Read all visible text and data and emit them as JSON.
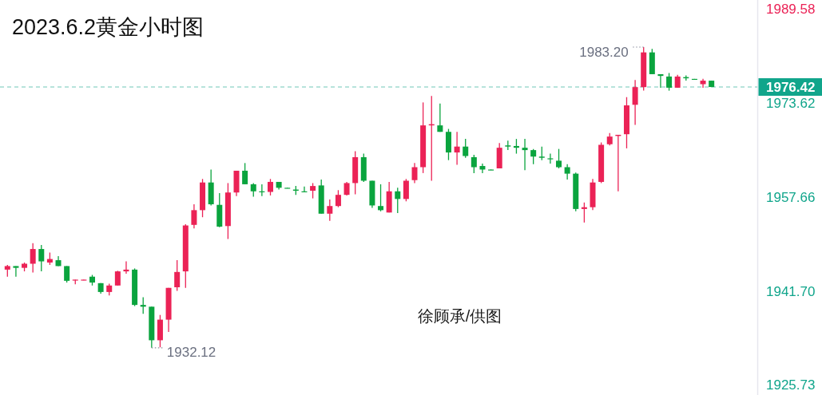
{
  "chart_data": {
    "type": "candlestick",
    "title": "2023.6.2黄金小时图",
    "categories": [
      null,
      null,
      null,
      null,
      null,
      null,
      null,
      null,
      null,
      null,
      null,
      null,
      null,
      null,
      null,
      null,
      null,
      null,
      null,
      null,
      null,
      null,
      null,
      null,
      null,
      null,
      null,
      null,
      null,
      null,
      null,
      null,
      null,
      null,
      null,
      null,
      null,
      null,
      null,
      null,
      null,
      null,
      null,
      null,
      null,
      null,
      null,
      null,
      null,
      null,
      null,
      null,
      null,
      null,
      null,
      null,
      null,
      null,
      null,
      null,
      null,
      null,
      null,
      null,
      null,
      null,
      null,
      null,
      null,
      null,
      null,
      null,
      null,
      null,
      null,
      null,
      null,
      null,
      null,
      null,
      null,
      null,
      null,
      null
    ],
    "ohlc": [
      [
        1945.4,
        1946.2,
        1944.2,
        1946.0
      ],
      [
        1946.0,
        1946.0,
        1944.2,
        1945.7
      ],
      [
        1945.7,
        1946.6,
        1945.1,
        1946.4
      ],
      [
        1946.4,
        1949.9,
        1944.9,
        1948.9
      ],
      [
        1948.9,
        1949.6,
        1945.1,
        1946.8
      ],
      [
        1946.6,
        1948.3,
        1946.2,
        1947.2
      ],
      [
        1947.0,
        1947.7,
        1946.0,
        1946.0
      ],
      [
        1946.0,
        1946.0,
        1943.2,
        1943.5
      ],
      [
        1943.6,
        1943.7,
        1942.9,
        1943.7
      ],
      [
        1943.6,
        1943.7,
        1943.6,
        1943.7
      ],
      [
        1944.2,
        1944.5,
        1942.7,
        1943.2
      ],
      [
        1943.1,
        1943.1,
        1941.3,
        1941.6
      ],
      [
        1941.6,
        1943.0,
        1941.0,
        1942.7
      ],
      [
        1942.7,
        1945.2,
        1942.7,
        1945.1
      ],
      [
        1945.1,
        1946.8,
        1944.7,
        1945.4
      ],
      [
        1945.4,
        1945.6,
        1939.2,
        1939.4
      ],
      [
        1939.4,
        1940.7,
        1937.9,
        1939.1
      ],
      [
        1939.1,
        1939.1,
        1932.12,
        1933.4
      ],
      [
        1933.4,
        1937.7,
        1932.2,
        1936.9
      ],
      [
        1936.9,
        1942.3,
        1934.8,
        1942.3
      ],
      [
        1942.4,
        1947.0,
        1941.8,
        1945.0
      ],
      [
        1945.1,
        1953.1,
        1942.3,
        1952.9
      ],
      [
        1953.0,
        1956.5,
        1952.4,
        1955.5
      ],
      [
        1955.5,
        1960.8,
        1954.3,
        1960.2
      ],
      [
        1960.2,
        1962.4,
        1956.3,
        1956.5
      ],
      [
        1956.4,
        1958.4,
        1952.6,
        1952.7
      ],
      [
        1952.8,
        1960.1,
        1950.6,
        1958.5
      ],
      [
        1958.5,
        1962.2,
        1957.9,
        1962.2
      ],
      [
        1962.2,
        1963.5,
        1959.9,
        1959.9
      ],
      [
        1959.9,
        1960.1,
        1957.8,
        1958.7
      ],
      [
        1958.7,
        1959.9,
        1957.9,
        1958.6
      ],
      [
        1958.6,
        1960.8,
        1958.0,
        1960.3
      ],
      [
        1960.3,
        1960.3,
        1959.0,
        1959.3
      ],
      [
        1959.3,
        1959.3,
        1959.2,
        1959.2
      ],
      [
        1959.0,
        1959.6,
        1958.1,
        1958.8
      ],
      [
        1958.7,
        1959.5,
        1958.6,
        1958.6
      ],
      [
        1958.8,
        1960.1,
        1957.5,
        1959.6
      ],
      [
        1959.7,
        1960.7,
        1954.9,
        1954.9
      ],
      [
        1954.9,
        1957.3,
        1953.7,
        1956.2
      ],
      [
        1956.2,
        1958.9,
        1956.0,
        1958.1
      ],
      [
        1958.1,
        1960.3,
        1958.0,
        1960.1
      ],
      [
        1960.1,
        1965.5,
        1958.2,
        1964.5
      ],
      [
        1964.5,
        1965.1,
        1960.3,
        1960.5
      ],
      [
        1960.5,
        1960.5,
        1955.9,
        1956.3
      ],
      [
        1956.2,
        1959.9,
        1955.3,
        1955.5
      ],
      [
        1955.1,
        1960.3,
        1955.1,
        1958.7
      ],
      [
        1958.7,
        1959.3,
        1955.0,
        1957.4
      ],
      [
        1957.4,
        1960.8,
        1957.0,
        1960.5
      ],
      [
        1960.6,
        1963.5,
        1960.1,
        1962.8
      ],
      [
        1962.8,
        1973.8,
        1961.8,
        1969.9
      ],
      [
        1969.9,
        1974.9,
        1960.5,
        1970.1
      ],
      [
        1969.9,
        1973.6,
        1968.8,
        1968.8
      ],
      [
        1968.8,
        1969.3,
        1964.0,
        1965.3
      ],
      [
        1965.3,
        1968.8,
        1963.2,
        1966.3
      ],
      [
        1966.3,
        1967.6,
        1964.4,
        1964.7
      ],
      [
        1964.5,
        1964.9,
        1961.8,
        1962.8
      ],
      [
        1963.0,
        1963.4,
        1961.8,
        1962.4
      ],
      [
        1962.4,
        1962.4,
        1962.3,
        1962.3
      ],
      [
        1962.6,
        1966.9,
        1962.6,
        1966.1
      ],
      [
        1966.5,
        1967.3,
        1965.7,
        1966.3
      ],
      [
        1966.4,
        1967.6,
        1965.1,
        1966.1
      ],
      [
        1966.1,
        1967.6,
        1962.3,
        1965.7
      ],
      [
        1965.7,
        1965.9,
        1963.3,
        1964.6
      ],
      [
        1964.6,
        1966.3,
        1964.0,
        1964.4
      ],
      [
        1964.3,
        1965.1,
        1963.4,
        1964.2
      ],
      [
        1963.9,
        1965.9,
        1962.6,
        1962.8
      ],
      [
        1962.8,
        1963.3,
        1960.7,
        1961.7
      ],
      [
        1961.7,
        1961.9,
        1955.3,
        1955.7
      ],
      [
        1955.7,
        1956.8,
        1953.4,
        1956.0
      ],
      [
        1956.0,
        1960.8,
        1955.5,
        1960.2
      ],
      [
        1960.3,
        1967.0,
        1960.1,
        1966.6
      ],
      [
        1966.7,
        1968.6,
        1966.5,
        1968.0
      ],
      [
        1968.1,
        1968.3,
        1958.7,
        1968.3
      ],
      [
        1968.4,
        1974.7,
        1966.0,
        1973.3
      ],
      [
        1973.4,
        1977.6,
        1970.0,
        1976.4
      ],
      [
        1976.4,
        1983.2,
        1975.8,
        1982.3
      ],
      [
        1982.3,
        1982.9,
        1978.6,
        1978.6
      ],
      [
        1978.6,
        1978.6,
        1976.3,
        1978.3
      ],
      [
        1978.2,
        1978.8,
        1975.8,
        1976.3
      ],
      [
        1976.3,
        1978.5,
        1976.3,
        1978.2
      ],
      [
        1978.1,
        1978.4,
        1977.5,
        1977.9
      ],
      [
        1977.8,
        1977.8,
        1977.7,
        1977.7
      ],
      [
        1976.9,
        1977.8,
        1976.3,
        1977.5
      ],
      [
        1977.5,
        1977.5,
        1976.4,
        1976.42
      ]
    ],
    "colors": [
      "#eb2256",
      "#0aa43e",
      "#eb2256",
      "#eb2256",
      "#0aa43e",
      "#eb2256",
      "#0aa43e",
      "#0aa43e",
      "#eb2256",
      "#eb2256",
      "#0aa43e",
      "#0aa43e",
      "#eb2256",
      "#eb2256",
      "#eb2256",
      "#0aa43e",
      "#0aa43e",
      "#0aa43e",
      "#eb2256",
      "#eb2256",
      "#eb2256",
      "#eb2256",
      "#eb2256",
      "#eb2256",
      "#0aa43e",
      "#0aa43e",
      "#eb2256",
      "#eb2256",
      "#0aa43e",
      "#0aa43e",
      "#0aa43e",
      "#eb2256",
      "#0aa43e",
      "#0aa43e",
      "#0aa43e",
      "#0aa43e",
      "#eb2256",
      "#0aa43e",
      "#eb2256",
      "#eb2256",
      "#eb2256",
      "#eb2256",
      "#0aa43e",
      "#0aa43e",
      "#0aa43e",
      "#eb2256",
      "#0aa43e",
      "#eb2256",
      "#eb2256",
      "#eb2256",
      "#eb2256",
      "#0aa43e",
      "#0aa43e",
      "#eb2256",
      "#0aa43e",
      "#0aa43e",
      "#0aa43e",
      "#0aa43e",
      "#eb2256",
      "#0aa43e",
      "#0aa43e",
      "#0aa43e",
      "#0aa43e",
      "#0aa43e",
      "#0aa43e",
      "#0aa43e",
      "#0aa43e",
      "#0aa43e",
      "#eb2256",
      "#eb2256",
      "#eb2256",
      "#eb2256",
      "#eb2256",
      "#eb2256",
      "#eb2256",
      "#eb2256",
      "#0aa43e",
      "#0aa43e",
      "#0aa43e",
      "#eb2256",
      "#0aa43e",
      "#0aa43e",
      "#eb2256",
      "#0aa43e"
    ],
    "ylim": [
      1924.1,
      1991.2
    ],
    "yticks": [
      1989.58,
      1973.62,
      1957.66,
      {
        "value": 1941.7,
        "label": "1941.70"
      },
      1925.73
    ],
    "tick_labels": "y",
    "ref_lines": [
      {
        "axis": "y",
        "value": 1976.42,
        "label": "1976.42",
        "color": "#10a58b",
        "line_style": "dashed"
      }
    ],
    "annotations": [
      "1983.20",
      "1932.12",
      "徐顾承/供图"
    ]
  }
}
